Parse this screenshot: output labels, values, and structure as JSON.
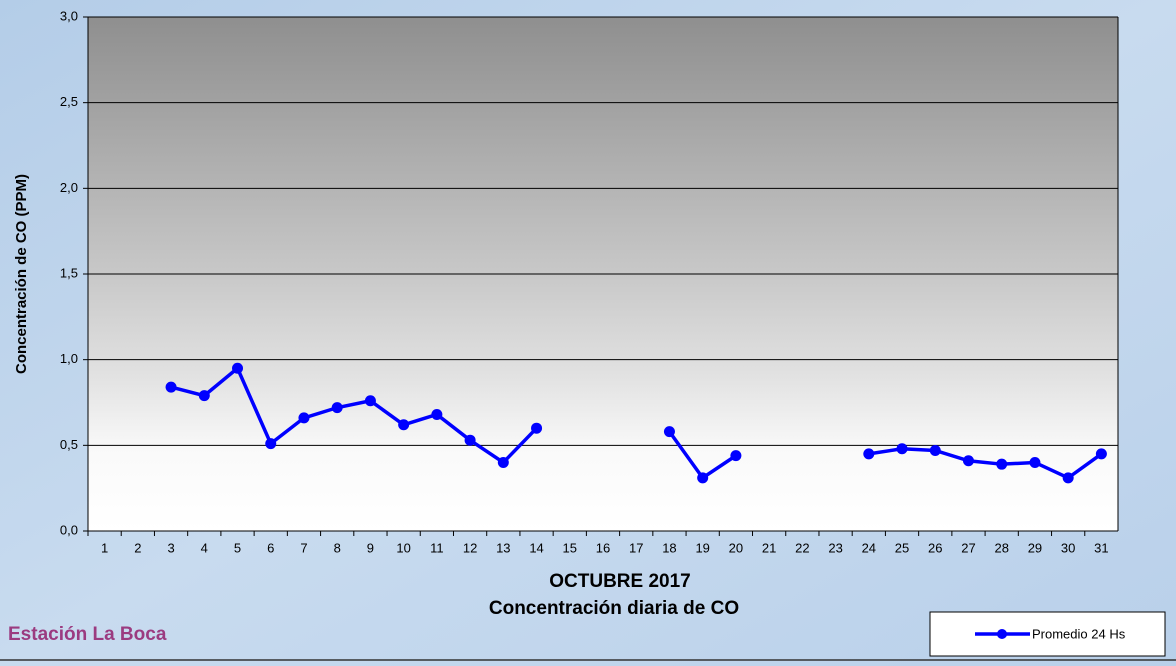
{
  "chart_data": {
    "type": "line",
    "title": "Concentración diaria de CO",
    "x_label": "OCTUBRE 2017",
    "y_label": "Concentración de CO (PPM)",
    "annotation": "Estación La Boca",
    "categories": [
      "1",
      "2",
      "3",
      "4",
      "5",
      "6",
      "7",
      "8",
      "9",
      "10",
      "11",
      "12",
      "13",
      "14",
      "15",
      "16",
      "17",
      "18",
      "19",
      "20",
      "21",
      "22",
      "23",
      "24",
      "25",
      "26",
      "27",
      "28",
      "29",
      "30",
      "31"
    ],
    "series": [
      {
        "name": "Promedio 24 Hs",
        "color": "#0000ff",
        "values": [
          null,
          null,
          0.84,
          0.79,
          0.95,
          0.51,
          0.66,
          0.72,
          0.76,
          0.62,
          0.68,
          0.53,
          0.4,
          0.6,
          null,
          null,
          null,
          0.58,
          0.31,
          0.44,
          null,
          null,
          null,
          0.45,
          0.48,
          0.47,
          0.41,
          0.39,
          0.4,
          0.31,
          0.45
        ]
      }
    ],
    "ylim": [
      0,
      3
    ],
    "yticks": [
      {
        "value": 0,
        "label": "0,0"
      },
      {
        "value": 0.5,
        "label": "0,5"
      },
      {
        "value": 1,
        "label": "1,0"
      },
      {
        "value": 1.5,
        "label": "1,5"
      },
      {
        "value": 2,
        "label": "2,0"
      },
      {
        "value": 2.5,
        "label": "2,5"
      },
      {
        "value": 3,
        "label": "3,0"
      }
    ],
    "grid": true,
    "legend": "bottom-right"
  }
}
